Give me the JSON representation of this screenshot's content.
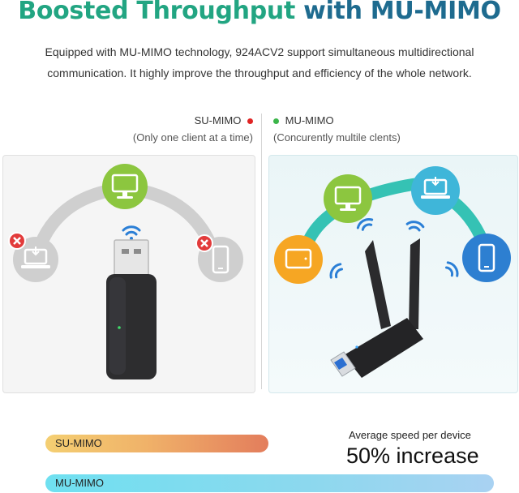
{
  "header": {
    "title_part1": "Boosted Throughput",
    "title_part2": "with MU-MIMO",
    "title_color1": "#22a582",
    "title_color2": "#1e6b8f",
    "description_line1": "Equipped with MU-MIMO technology, 924ACV2 support simultaneous multidirectional",
    "description_line2": "communication. It highly improve the throughput and efficiency of the whole network."
  },
  "modes": {
    "su": {
      "label": "SU-MIMO",
      "subtitle": "(Only one client at a time)",
      "dot_color": "#e02424"
    },
    "mu": {
      "label": "MU-MIMO",
      "subtitle": "(Concurently multile clents)",
      "dot_color": "#3bb54a"
    }
  },
  "su_panel": {
    "devices": [
      {
        "icon": "laptop-icon",
        "state": "blocked"
      },
      {
        "icon": "monitor-icon",
        "state": "connected",
        "color": "#8cc63f"
      },
      {
        "icon": "phone-icon",
        "state": "blocked"
      }
    ],
    "adapter": "usb-adapter-no-antenna"
  },
  "mu_panel": {
    "devices": [
      {
        "icon": "tablet-icon",
        "color": "#f6a623"
      },
      {
        "icon": "monitor-icon",
        "color": "#8cc63f"
      },
      {
        "icon": "laptop-icon",
        "color": "#3fb6d9"
      },
      {
        "icon": "phone-icon",
        "color": "#2d7fd1"
      }
    ],
    "adapter": "usb-adapter-dual-antenna"
  },
  "comparison": {
    "su_bar_label": "SU-MIMO",
    "mu_bar_label": "MU-MIMO",
    "metric_label": "Average speed per device",
    "metric_value": "50% increase"
  }
}
